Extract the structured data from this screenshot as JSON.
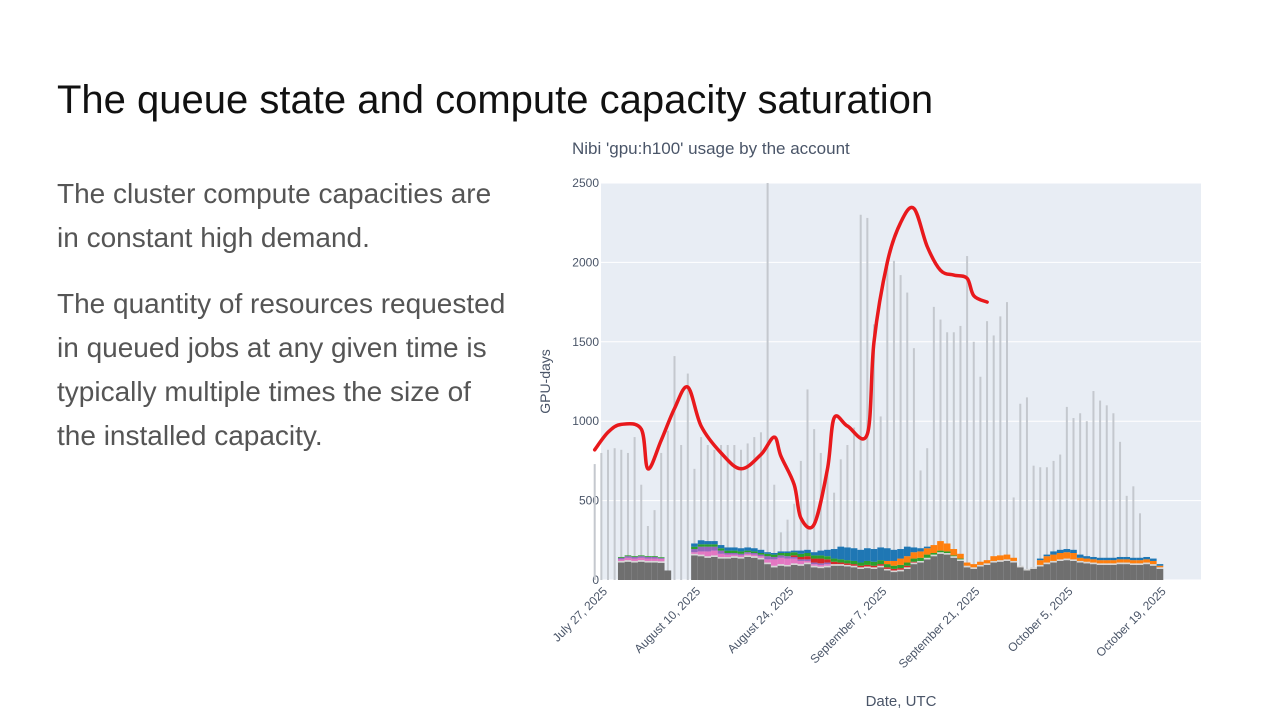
{
  "slide": {
    "title": "The queue state and compute capacity saturation",
    "paragraphs": [
      "The cluster compute capacities are in constant high demand.",
      "The quantity of resources requested in queued jobs at any given time is typically multiple times the size of the installed capacity."
    ]
  },
  "chart_data": {
    "type": "bar",
    "title": "Nibi 'gpu:h100' usage by the account",
    "xlabel": "Date, UTC",
    "ylabel": "GPU-days",
    "ylim": [
      0,
      2500
    ],
    "yticks": [
      0,
      500,
      1000,
      1500,
      2000,
      2500
    ],
    "xticks": [
      {
        "date": "2025-07-27",
        "label": "July 27, 2025"
      },
      {
        "date": "2025-08-10",
        "label": "August 10, 2025"
      },
      {
        "date": "2025-08-24",
        "label": "August 24, 2025"
      },
      {
        "date": "2025-09-07",
        "label": "September 7, 2025"
      },
      {
        "date": "2025-09-21",
        "label": "September 21, 2025"
      },
      {
        "date": "2025-10-05",
        "label": "October 5, 2025"
      },
      {
        "date": "2025-10-19",
        "label": "October 19, 2025"
      }
    ],
    "bar_mode": "stack",
    "grid": true,
    "colors": {
      "plot_bg": "#e8edf4",
      "grid": "#ffffff",
      "queued_bar": "#c4c8ce",
      "annotation": "#e8191c",
      "stack": [
        "#6f6f6f",
        "#d6d6d6",
        "#e377c2",
        "#9467bd",
        "#d62728",
        "#2ca02c",
        "#ff7f0e",
        "#1f77b4"
      ]
    },
    "queued_series": {
      "x_start": "2025-07-25",
      "values": [
        730,
        800,
        820,
        830,
        820,
        800,
        900,
        600,
        340,
        440,
        800,
        940,
        1410,
        850,
        1300,
        700,
        900,
        850,
        820,
        850,
        850,
        850,
        820,
        860,
        900,
        930,
        2500,
        600,
        300,
        380,
        480,
        750,
        1200,
        950,
        800,
        680,
        550,
        760,
        850,
        960,
        2300,
        2280,
        1610,
        1030,
        1970,
        2010,
        1920,
        1810,
        1460,
        690,
        830,
        1720,
        1640,
        1560,
        1560,
        1600,
        2040,
        1500,
        1280,
        1630,
        1540,
        1660,
        1750,
        520,
        1110,
        1150,
        720,
        710,
        710,
        750,
        790,
        1090,
        1020,
        1050,
        1000,
        1190,
        1130,
        1100,
        1050,
        870,
        530,
        590,
        420
      ]
    },
    "usage_stack": {
      "x_start": "2025-07-29",
      "series": [
        {
          "values": [
            110,
            115,
            110,
            115,
            110,
            110,
            108,
            60,
            0,
            0,
            0,
            155,
            150,
            140,
            145,
            135,
            135,
            140,
            135,
            145,
            140,
            130,
            100,
            80,
            90,
            85,
            95,
            90,
            100,
            80,
            75,
            80,
            90,
            90,
            85,
            80,
            70,
            75,
            70,
            80,
            60,
            50,
            55,
            70,
            100,
            110,
            130,
            150,
            165,
            160,
            140,
            120,
            80,
            70,
            85,
            95,
            110,
            115,
            120,
            110,
            80,
            60,
            70,
            85,
            100,
            110,
            120,
            125,
            120,
            110,
            105,
            100,
            95,
            95,
            95,
            100,
            100,
            95,
            95,
            100,
            90,
            70
          ]
        },
        {
          "values": [
            10,
            10,
            10,
            10,
            10,
            10,
            10,
            0,
            0,
            0,
            0,
            10,
            10,
            10,
            10,
            10,
            10,
            10,
            10,
            10,
            10,
            10,
            10,
            10,
            10,
            10,
            10,
            10,
            10,
            10,
            10,
            10,
            10,
            10,
            10,
            10,
            10,
            10,
            10,
            10,
            10,
            10,
            10,
            10,
            10,
            10,
            10,
            10,
            10,
            10,
            10,
            10,
            10,
            10,
            10,
            10,
            10,
            10,
            10,
            10,
            10,
            10,
            10,
            10,
            10,
            10,
            10,
            10,
            10,
            10,
            10,
            10,
            10,
            10,
            10,
            10,
            10,
            10,
            10,
            10,
            10,
            10
          ]
        },
        {
          "values": [
            10,
            15,
            15,
            15,
            15,
            15,
            15,
            0,
            0,
            0,
            0,
            10,
            20,
            30,
            30,
            20,
            15,
            10,
            10,
            10,
            10,
            10,
            20,
            40,
            40,
            40,
            30,
            20,
            10,
            10,
            10,
            10,
            0,
            0,
            0,
            0,
            0,
            0,
            0,
            0,
            0,
            0,
            0,
            0,
            0,
            0,
            0,
            0,
            0,
            0,
            0,
            0,
            0,
            0,
            0,
            0,
            0,
            0,
            0,
            0,
            0,
            0,
            0,
            0,
            0,
            0,
            0,
            0,
            0,
            0,
            0,
            0,
            0,
            0,
            0,
            0,
            0,
            0,
            0,
            0,
            0,
            0
          ]
        },
        {
          "values": [
            10,
            10,
            10,
            10,
            10,
            10,
            5,
            0,
            0,
            0,
            0,
            20,
            30,
            30,
            25,
            20,
            10,
            10,
            10,
            10,
            10,
            10,
            20,
            15,
            15,
            15,
            10,
            10,
            10,
            10,
            10,
            10,
            0,
            0,
            0,
            0,
            0,
            0,
            0,
            0,
            0,
            0,
            0,
            0,
            0,
            0,
            0,
            0,
            0,
            0,
            0,
            0,
            0,
            0,
            0,
            0,
            0,
            0,
            0,
            0,
            0,
            0,
            0,
            0,
            0,
            0,
            0,
            0,
            0,
            0,
            0,
            0,
            0,
            0,
            0,
            0,
            0,
            0,
            0,
            0,
            0,
            0
          ]
        },
        {
          "values": [
            0,
            0,
            0,
            0,
            0,
            0,
            0,
            0,
            0,
            0,
            0,
            0,
            0,
            0,
            0,
            0,
            0,
            0,
            0,
            0,
            0,
            0,
            0,
            0,
            0,
            0,
            10,
            15,
            20,
            25,
            30,
            20,
            15,
            10,
            10,
            10,
            10,
            10,
            10,
            10,
            10,
            10,
            10,
            10,
            5,
            0,
            0,
            0,
            0,
            0,
            0,
            0,
            0,
            0,
            0,
            0,
            0,
            0,
            0,
            0,
            0,
            0,
            0,
            0,
            0,
            0,
            0,
            0,
            0,
            0,
            0,
            0,
            0,
            0,
            0,
            0,
            0,
            0,
            0,
            0,
            0,
            0
          ]
        },
        {
          "values": [
            5,
            5,
            5,
            5,
            5,
            5,
            5,
            0,
            0,
            0,
            0,
            15,
            15,
            15,
            15,
            15,
            15,
            15,
            15,
            10,
            10,
            10,
            15,
            15,
            15,
            20,
            20,
            20,
            20,
            20,
            20,
            20,
            20,
            20,
            20,
            20,
            20,
            25,
            25,
            25,
            20,
            20,
            20,
            20,
            20,
            20,
            20,
            10,
            10,
            10,
            5,
            5,
            0,
            0,
            0,
            0,
            0,
            0,
            0,
            0,
            0,
            0,
            0,
            0,
            0,
            0,
            0,
            0,
            0,
            0,
            0,
            0,
            0,
            0,
            0,
            0,
            0,
            0,
            0,
            0,
            0,
            0
          ]
        },
        {
          "values": [
            0,
            0,
            0,
            0,
            0,
            0,
            0,
            0,
            0,
            0,
            0,
            0,
            0,
            0,
            0,
            0,
            0,
            0,
            0,
            0,
            0,
            0,
            0,
            0,
            0,
            0,
            0,
            0,
            0,
            0,
            0,
            0,
            0,
            0,
            0,
            0,
            0,
            0,
            0,
            0,
            20,
            30,
            40,
            40,
            40,
            40,
            40,
            50,
            60,
            50,
            40,
            30,
            20,
            20,
            20,
            20,
            30,
            30,
            30,
            20,
            0,
            0,
            0,
            30,
            40,
            40,
            40,
            40,
            40,
            20,
            20,
            20,
            20,
            20,
            20,
            20,
            20,
            20,
            20,
            20,
            20,
            10
          ]
        },
        {
          "values": [
            0,
            0,
            0,
            0,
            0,
            0,
            0,
            0,
            0,
            0,
            0,
            20,
            25,
            20,
            20,
            20,
            20,
            20,
            20,
            20,
            20,
            20,
            10,
            10,
            10,
            10,
            10,
            20,
            20,
            20,
            30,
            40,
            60,
            80,
            80,
            80,
            80,
            80,
            80,
            80,
            80,
            70,
            60,
            60,
            30,
            20,
            10,
            0,
            0,
            0,
            0,
            0,
            0,
            0,
            0,
            0,
            0,
            0,
            0,
            0,
            0,
            0,
            0,
            10,
            10,
            20,
            20,
            20,
            20,
            20,
            15,
            15,
            15,
            15,
            15,
            15,
            15,
            15,
            15,
            15,
            15,
            10
          ]
        }
      ]
    },
    "annotation_curve": [
      {
        "x": "2025-07-25",
        "y": 820
      },
      {
        "x": "2025-07-27",
        "y": 930
      },
      {
        "x": "2025-07-29",
        "y": 980
      },
      {
        "x": "2025-08-01",
        "y": 950
      },
      {
        "x": "2025-08-02",
        "y": 700
      },
      {
        "x": "2025-08-04",
        "y": 880
      },
      {
        "x": "2025-08-06",
        "y": 1080
      },
      {
        "x": "2025-08-08",
        "y": 1215
      },
      {
        "x": "2025-08-10",
        "y": 970
      },
      {
        "x": "2025-08-13",
        "y": 800
      },
      {
        "x": "2025-08-16",
        "y": 700
      },
      {
        "x": "2025-08-19",
        "y": 790
      },
      {
        "x": "2025-08-21",
        "y": 900
      },
      {
        "x": "2025-08-22",
        "y": 780
      },
      {
        "x": "2025-08-24",
        "y": 600
      },
      {
        "x": "2025-08-25",
        "y": 390
      },
      {
        "x": "2025-08-27",
        "y": 350
      },
      {
        "x": "2025-08-29",
        "y": 700
      },
      {
        "x": "2025-08-30",
        "y": 1020
      },
      {
        "x": "2025-09-01",
        "y": 970
      },
      {
        "x": "2025-09-04",
        "y": 920
      },
      {
        "x": "2025-09-05",
        "y": 1500
      },
      {
        "x": "2025-09-07",
        "y": 2000
      },
      {
        "x": "2025-09-09",
        "y": 2250
      },
      {
        "x": "2025-09-11",
        "y": 2340
      },
      {
        "x": "2025-09-13",
        "y": 2100
      },
      {
        "x": "2025-09-15",
        "y": 1950
      },
      {
        "x": "2025-09-17",
        "y": 1920
      },
      {
        "x": "2025-09-19",
        "y": 1900
      },
      {
        "x": "2025-09-20",
        "y": 1790
      },
      {
        "x": "2025-09-22",
        "y": 1750
      }
    ]
  }
}
